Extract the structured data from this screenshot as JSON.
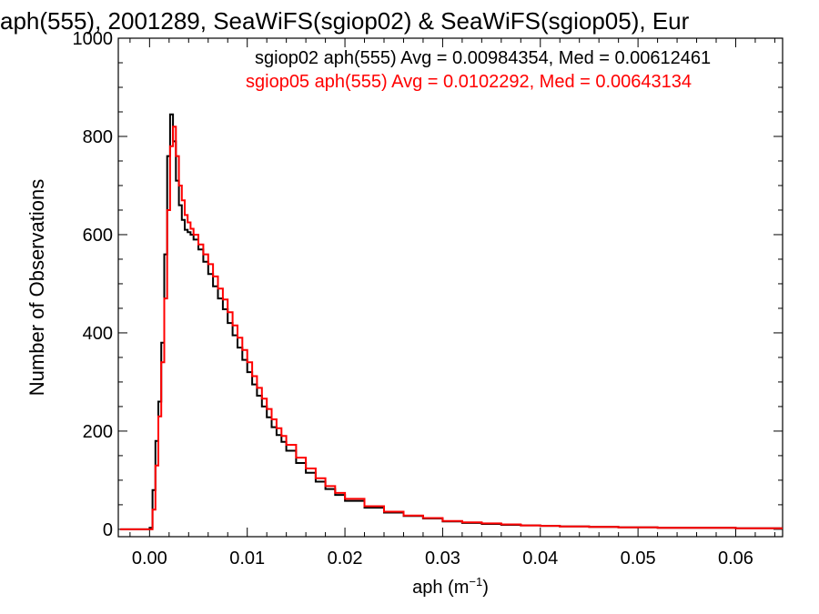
{
  "chart_data": {
    "type": "line",
    "title": "aph(555), 2001289, SeaWiFS(sgiop02) & SeaWiFS(sgiop05), Eur",
    "xlabel_main": "aph (m",
    "xlabel_exp": "−1",
    "xlabel_close": ")",
    "ylabel": "Number of Observations",
    "xlim": [
      -0.0032,
      0.0648
    ],
    "ylim": [
      -15,
      1000
    ],
    "x_ticks": [
      0.0,
      0.01,
      0.02,
      0.03,
      0.04,
      0.05,
      0.06
    ],
    "x_tick_labels": [
      "0.00",
      "0.01",
      "0.02",
      "0.03",
      "0.04",
      "0.05",
      "0.06"
    ],
    "y_ticks": [
      0,
      200,
      400,
      600,
      800,
      1000
    ],
    "y_tick_labels": [
      "0",
      "200",
      "400",
      "600",
      "800",
      "1000"
    ],
    "legend_placement": "top-right",
    "annotations": [
      {
        "text": "sgiop02 aph(555) Avg = 0.00984354, Med = 0.00612461",
        "color": "#000000"
      },
      {
        "text": "sgiop05 aph(555) Avg = 0.0102292, Med = 0.00643134",
        "color": "#ff0000"
      }
    ],
    "series": [
      {
        "name": "sgiop02",
        "color": "#000000",
        "points": [
          [
            -0.003,
            0
          ],
          [
            -0.0005,
            0
          ],
          [
            0.0,
            3
          ],
          [
            0.0003,
            80
          ],
          [
            0.0006,
            180
          ],
          [
            0.0009,
            260
          ],
          [
            0.0012,
            380
          ],
          [
            0.0015,
            560
          ],
          [
            0.0018,
            760
          ],
          [
            0.0021,
            845
          ],
          [
            0.0024,
            790
          ],
          [
            0.0027,
            710
          ],
          [
            0.003,
            660
          ],
          [
            0.0033,
            630
          ],
          [
            0.0036,
            610
          ],
          [
            0.0039,
            605
          ],
          [
            0.0042,
            600
          ],
          [
            0.0045,
            590
          ],
          [
            0.005,
            570
          ],
          [
            0.0055,
            545
          ],
          [
            0.006,
            520
          ],
          [
            0.0065,
            495
          ],
          [
            0.007,
            470
          ],
          [
            0.0075,
            448
          ],
          [
            0.008,
            420
          ],
          [
            0.0085,
            395
          ],
          [
            0.009,
            370
          ],
          [
            0.0095,
            345
          ],
          [
            0.01,
            320
          ],
          [
            0.0105,
            295
          ],
          [
            0.011,
            272
          ],
          [
            0.0115,
            250
          ],
          [
            0.012,
            228
          ],
          [
            0.0125,
            208
          ],
          [
            0.013,
            192
          ],
          [
            0.0135,
            178
          ],
          [
            0.014,
            160
          ],
          [
            0.015,
            135
          ],
          [
            0.016,
            115
          ],
          [
            0.017,
            97
          ],
          [
            0.018,
            82
          ],
          [
            0.019,
            70
          ],
          [
            0.02,
            58
          ],
          [
            0.022,
            44
          ],
          [
            0.024,
            34
          ],
          [
            0.026,
            27
          ],
          [
            0.028,
            22
          ],
          [
            0.03,
            16
          ],
          [
            0.032,
            13
          ],
          [
            0.034,
            11
          ],
          [
            0.036,
            9
          ],
          [
            0.038,
            8
          ],
          [
            0.04,
            7
          ],
          [
            0.042,
            6
          ],
          [
            0.045,
            5
          ],
          [
            0.048,
            4
          ],
          [
            0.052,
            3
          ],
          [
            0.056,
            3
          ],
          [
            0.06,
            2
          ],
          [
            0.064,
            2
          ]
        ]
      },
      {
        "name": "sgiop05",
        "color": "#ff0000",
        "points": [
          [
            -0.003,
            0
          ],
          [
            0.0,
            0
          ],
          [
            0.0003,
            40
          ],
          [
            0.0006,
            130
          ],
          [
            0.0009,
            230
          ],
          [
            0.0012,
            340
          ],
          [
            0.0015,
            470
          ],
          [
            0.0018,
            650
          ],
          [
            0.0021,
            780
          ],
          [
            0.0024,
            820
          ],
          [
            0.0027,
            760
          ],
          [
            0.003,
            700
          ],
          [
            0.0033,
            670
          ],
          [
            0.0036,
            640
          ],
          [
            0.0039,
            625
          ],
          [
            0.0042,
            612
          ],
          [
            0.0045,
            600
          ],
          [
            0.005,
            580
          ],
          [
            0.0055,
            560
          ],
          [
            0.006,
            540
          ],
          [
            0.0065,
            515
          ],
          [
            0.007,
            490
          ],
          [
            0.0075,
            468
          ],
          [
            0.008,
            442
          ],
          [
            0.0085,
            415
          ],
          [
            0.009,
            390
          ],
          [
            0.0095,
            365
          ],
          [
            0.01,
            340
          ],
          [
            0.0105,
            312
          ],
          [
            0.011,
            288
          ],
          [
            0.0115,
            266
          ],
          [
            0.012,
            245
          ],
          [
            0.0125,
            224
          ],
          [
            0.013,
            206
          ],
          [
            0.0135,
            190
          ],
          [
            0.014,
            172
          ],
          [
            0.015,
            146
          ],
          [
            0.016,
            124
          ],
          [
            0.017,
            104
          ],
          [
            0.018,
            88
          ],
          [
            0.019,
            74
          ],
          [
            0.02,
            62
          ],
          [
            0.022,
            47
          ],
          [
            0.024,
            36
          ],
          [
            0.026,
            28
          ],
          [
            0.028,
            23
          ],
          [
            0.03,
            17
          ],
          [
            0.032,
            14
          ],
          [
            0.034,
            12
          ],
          [
            0.036,
            10
          ],
          [
            0.038,
            8
          ],
          [
            0.04,
            7
          ],
          [
            0.042,
            6
          ],
          [
            0.045,
            5
          ],
          [
            0.048,
            4
          ],
          [
            0.052,
            3
          ],
          [
            0.056,
            3
          ],
          [
            0.06,
            2
          ],
          [
            0.064,
            2
          ]
        ]
      }
    ]
  }
}
